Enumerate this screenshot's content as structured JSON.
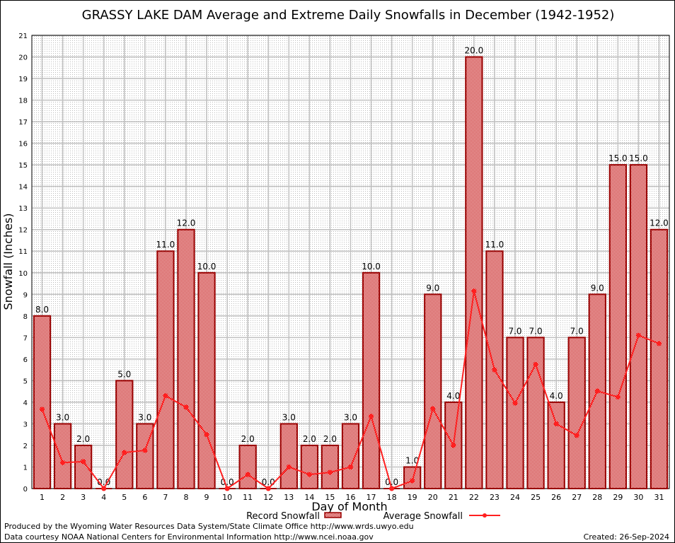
{
  "chart_data": {
    "type": "bar",
    "title": "GRASSY LAKE DAM Average and Extreme Daily Snowfalls in December (1942-1952)",
    "xlabel": "Day of Month",
    "ylabel": "Snowfall (Inches)",
    "ylim": [
      0,
      21
    ],
    "grid": true,
    "legend_placement": "bottom-center",
    "categories": [
      "1",
      "2",
      "3",
      "4",
      "5",
      "6",
      "7",
      "8",
      "9",
      "10",
      "11",
      "12",
      "13",
      "14",
      "15",
      "16",
      "17",
      "18",
      "19",
      "20",
      "21",
      "22",
      "23",
      "24",
      "25",
      "26",
      "27",
      "28",
      "29",
      "30",
      "31"
    ],
    "yticks": [
      "0",
      "1",
      "2",
      "3",
      "4",
      "5",
      "6",
      "7",
      "8",
      "9",
      "10",
      "11",
      "12",
      "13",
      "14",
      "15",
      "16",
      "17",
      "18",
      "19",
      "20",
      "21"
    ],
    "series": [
      {
        "name": "Record Snowfall",
        "kind": "bar",
        "color": "#990000",
        "values": [
          8,
          3,
          2,
          0,
          5,
          3,
          11,
          12,
          10,
          0,
          2,
          0,
          3,
          2,
          2,
          3,
          10,
          0,
          1,
          9,
          4,
          20,
          11,
          7,
          7,
          4,
          7,
          9,
          15,
          15,
          12
        ],
        "labels": [
          "8.0",
          "3.0",
          "2.0",
          "0.0",
          "5.0",
          "3.0",
          "11.0",
          "12.0",
          "10.0",
          "0.0",
          "2.0",
          "0.0",
          "3.0",
          "2.0",
          "2.0",
          "3.0",
          "10.0",
          "0.0",
          "1.0",
          "9.0",
          "4.0",
          "20.0",
          "11.0",
          "7.0",
          "7.0",
          "4.0",
          "7.0",
          "9.0",
          "15.0",
          "15.0",
          "12.0"
        ]
      },
      {
        "name": "Average Snowfall",
        "kind": "line",
        "color": "#ff2020",
        "values": [
          3.67,
          1.2,
          1.25,
          0,
          1.67,
          1.77,
          4.3,
          3.77,
          2.5,
          0,
          0.65,
          0,
          1.0,
          0.65,
          0.75,
          1.0,
          3.35,
          0,
          0.36,
          3.7,
          2.0,
          9.15,
          5.5,
          3.96,
          5.75,
          3.0,
          2.46,
          4.52,
          4.24,
          7.1,
          6.72
        ]
      }
    ]
  },
  "footer": {
    "produced_by": "Produced by the Wyoming Water Resources Data System/State Climate Office http://www.wrds.uwyo.edu",
    "data_courtesy": "Data courtesy NOAA National Centers for Environmental Information http://www.ncei.noaa.gov",
    "created": "Created: 26-Sep-2024"
  }
}
